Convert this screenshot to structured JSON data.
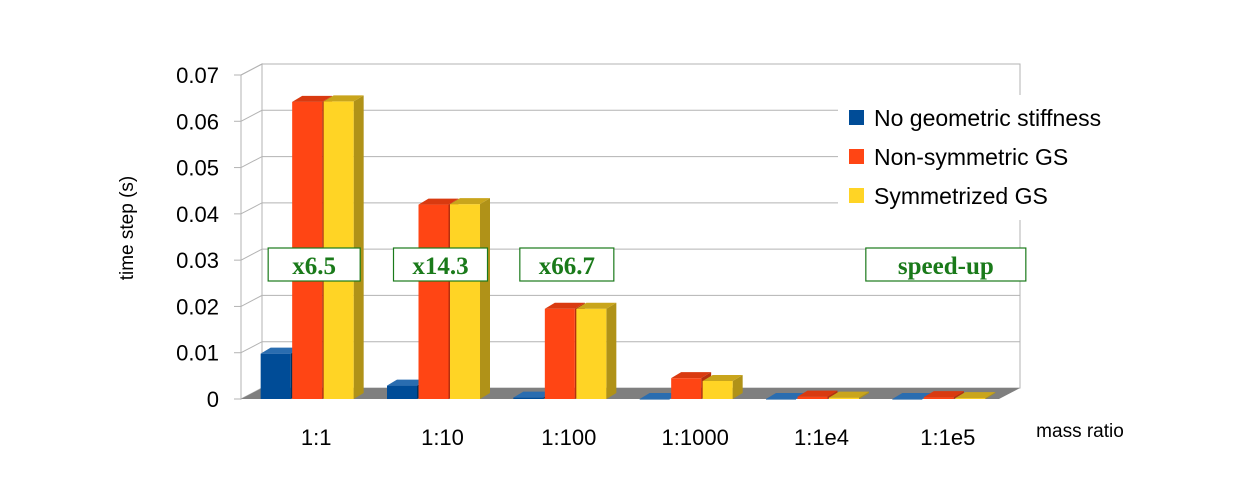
{
  "chart_data": {
    "type": "bar",
    "xlabel": "mass ratio",
    "ylabel": "time step (s)",
    "ylim": [
      0,
      0.07
    ],
    "y_ticks": [
      "0",
      "0.01",
      "0.02",
      "0.03",
      "0.04",
      "0.05",
      "0.06",
      "0.07"
    ],
    "categories": [
      "1:1",
      "1:10",
      "1:100",
      "1:1000",
      "1:1e4",
      "1:1e5"
    ],
    "grid": true,
    "legend_position": "right",
    "series": [
      {
        "name": "No geometric stiffness",
        "color": "#004c97",
        "side_color": "#00325f",
        "top_color": "#2a6db0",
        "values": [
          0.0098,
          0.0029,
          0.0003,
          0.0,
          0.0,
          0.0
        ]
      },
      {
        "name": "Non-symmetric GS",
        "color": "#ff4514",
        "side_color": "#b5300d",
        "top_color": "#d93a10",
        "values": [
          0.0642,
          0.042,
          0.0195,
          0.0045,
          0.0005,
          0.0004
        ]
      },
      {
        "name": "Symmetrized GS",
        "color": "#ffd425",
        "side_color": "#b09218",
        "top_color": "#c9a51c",
        "values": [
          0.0643,
          0.0421,
          0.0195,
          0.0039,
          0.0003,
          0.0002
        ]
      }
    ],
    "annotations": [
      {
        "text": "x6.5",
        "category_index": 0
      },
      {
        "text": "x14.3",
        "category_index": 1
      },
      {
        "text": "x66.7",
        "category_index": 2
      },
      {
        "text": "speed-up",
        "category_index": 5
      }
    ]
  }
}
